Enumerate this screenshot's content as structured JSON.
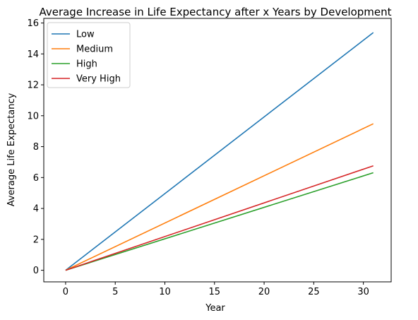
{
  "chart_data": {
    "type": "line",
    "title": "Average Increase in Life Expectancy after x Years by Development",
    "xlabel": "Year",
    "ylabel": "Average Life Expectancy",
    "xlim": [
      -2.2,
      32.8
    ],
    "ylim": [
      -0.75,
      16.3
    ],
    "xticks": [
      0,
      5,
      10,
      15,
      20,
      25,
      30
    ],
    "yticks": [
      0,
      2,
      4,
      6,
      8,
      10,
      12,
      14,
      16
    ],
    "grid": false,
    "legend_position": "top-left",
    "series": [
      {
        "name": "Low",
        "color": "#1f77b4",
        "x": [
          0,
          31
        ],
        "y": [
          0,
          15.38
        ]
      },
      {
        "name": "Medium",
        "color": "#ff7f0e",
        "x": [
          0,
          31
        ],
        "y": [
          0,
          9.48
        ]
      },
      {
        "name": "High",
        "color": "#2ca02c",
        "x": [
          0,
          31
        ],
        "y": [
          0,
          6.31
        ]
      },
      {
        "name": "Very High",
        "color": "#d62728",
        "x": [
          0,
          31
        ],
        "y": [
          0,
          6.76
        ]
      }
    ]
  }
}
